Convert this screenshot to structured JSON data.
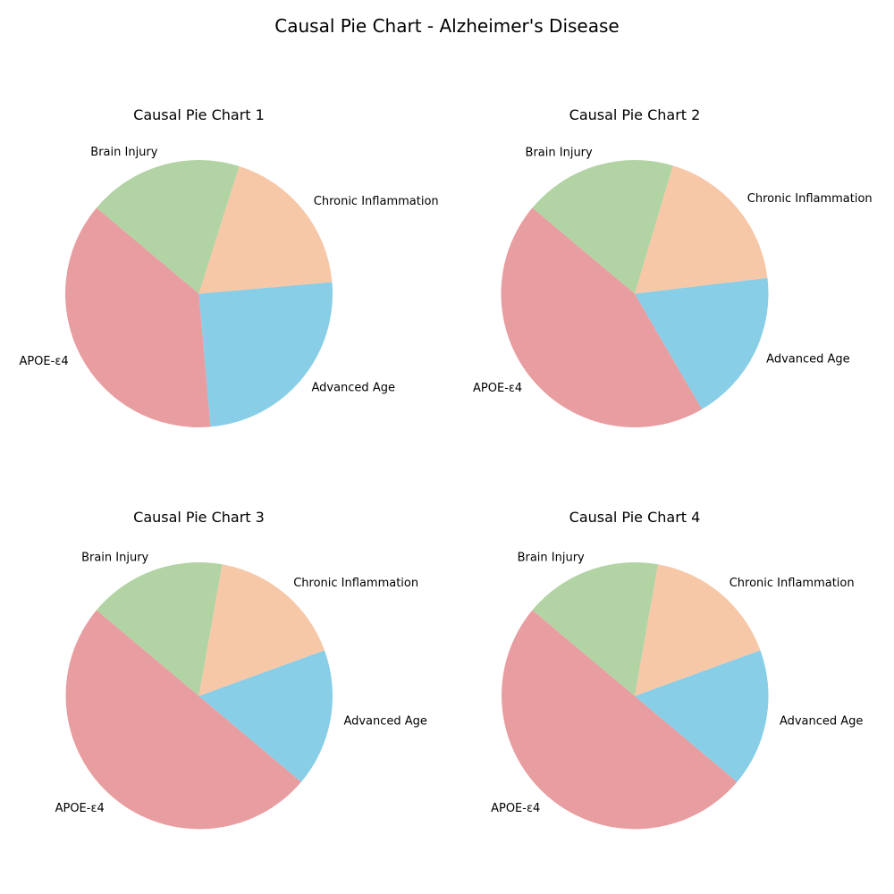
{
  "figure": {
    "title": "Causal Pie Chart - Alzheimer's Disease"
  },
  "chart_data": [
    {
      "type": "pie",
      "title": "Causal Pie Chart 1",
      "labels": [
        "APOE-ε4",
        "Advanced Age",
        "Chronic Inflammation",
        "Brain Injury"
      ],
      "values": [
        0.375,
        0.25,
        0.1875,
        0.1875
      ],
      "colors": [
        "#e89da0",
        "#88cee6",
        "#f6c8a8",
        "#b2d3a4"
      ],
      "start_angle": 140,
      "direction": "counterclockwise"
    },
    {
      "type": "pie",
      "title": "Causal Pie Chart 2",
      "labels": [
        "APOE-ε4",
        "Advanced Age",
        "Chronic Inflammation",
        "Brain Injury"
      ],
      "values": [
        0.445,
        0.185,
        0.185,
        0.185
      ],
      "colors": [
        "#e89da0",
        "#88cee6",
        "#f6c8a8",
        "#b2d3a4"
      ],
      "start_angle": 140,
      "direction": "counterclockwise"
    },
    {
      "type": "pie",
      "title": "Causal Pie Chart 3",
      "labels": [
        "APOE-ε4",
        "Advanced Age",
        "Chronic Inflammation",
        "Brain Injury"
      ],
      "values": [
        0.5,
        0.1667,
        0.1667,
        0.1667
      ],
      "colors": [
        "#e89da0",
        "#88cee6",
        "#f6c8a8",
        "#b2d3a4"
      ],
      "start_angle": 140,
      "direction": "counterclockwise"
    },
    {
      "type": "pie",
      "title": "Causal Pie Chart 4",
      "labels": [
        "APOE-ε4",
        "Advanced Age",
        "Chronic Inflammation",
        "Brain Injury"
      ],
      "values": [
        0.5,
        0.1667,
        0.1667,
        0.1667
      ],
      "colors": [
        "#e89da0",
        "#88cee6",
        "#f6c8a8",
        "#b2d3a4"
      ],
      "start_angle": 140,
      "direction": "counterclockwise"
    }
  ]
}
